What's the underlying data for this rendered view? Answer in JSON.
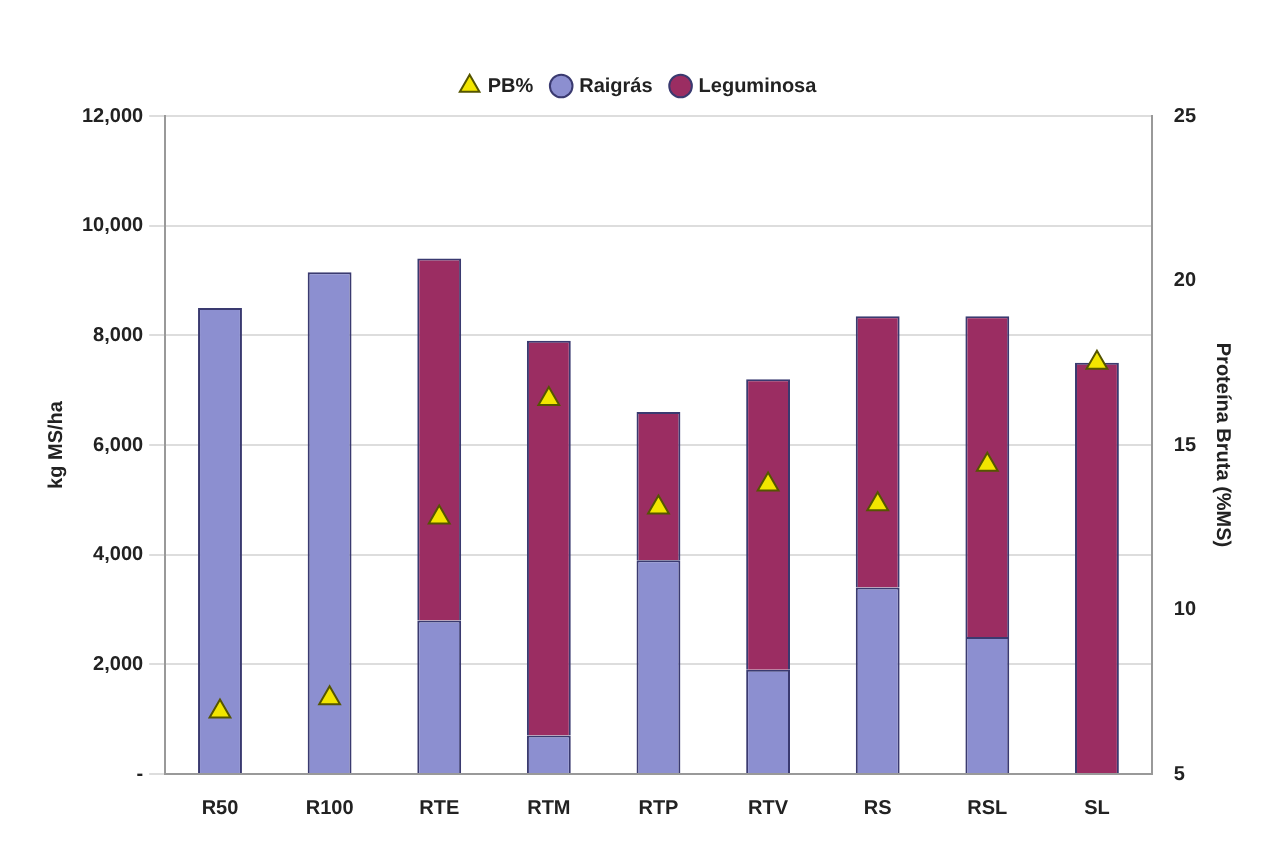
{
  "chart_data": {
    "type": "bar",
    "stacked": true,
    "categories": [
      "R50",
      "R100",
      "RTE",
      "RTM",
      "RTP",
      "RTV",
      "RS",
      "RSL",
      "SL"
    ],
    "series": [
      {
        "name": "Raigrás",
        "color": "#8c8fd0",
        "values": [
          8500,
          9150,
          2800,
          700,
          3900,
          1900,
          3400,
          2500,
          0
        ]
      },
      {
        "name": "Leguminosa",
        "color": "#9b2d62",
        "values": [
          null,
          null,
          6600,
          7200,
          2700,
          5300,
          4950,
          5850,
          7500
        ]
      },
      {
        "name": "PB%",
        "type": "scatter",
        "axis": "y2",
        "color": "#f2e600",
        "marker": "triangle",
        "values": [
          6.9,
          7.3,
          12.8,
          16.4,
          13.1,
          13.8,
          13.2,
          14.4,
          17.5
        ]
      }
    ],
    "ylabel": "kg MS/ha",
    "y2label": "Proteína Bruta (%MS)",
    "ylim": [
      0,
      12000
    ],
    "yticks": [
      {
        "value": 0,
        "label": "-"
      },
      {
        "value": 2000,
        "label": "2,000"
      },
      {
        "value": 4000,
        "label": "4,000"
      },
      {
        "value": 6000,
        "label": "6,000"
      },
      {
        "value": 8000,
        "label": "8,000"
      },
      {
        "value": 10000,
        "label": "10,000"
      },
      {
        "value": 12000,
        "label": "12,000"
      }
    ],
    "y2lim": [
      5,
      25
    ],
    "y2ticks": [
      5,
      10,
      15,
      20,
      25
    ],
    "grid": "y",
    "legend": "top"
  }
}
